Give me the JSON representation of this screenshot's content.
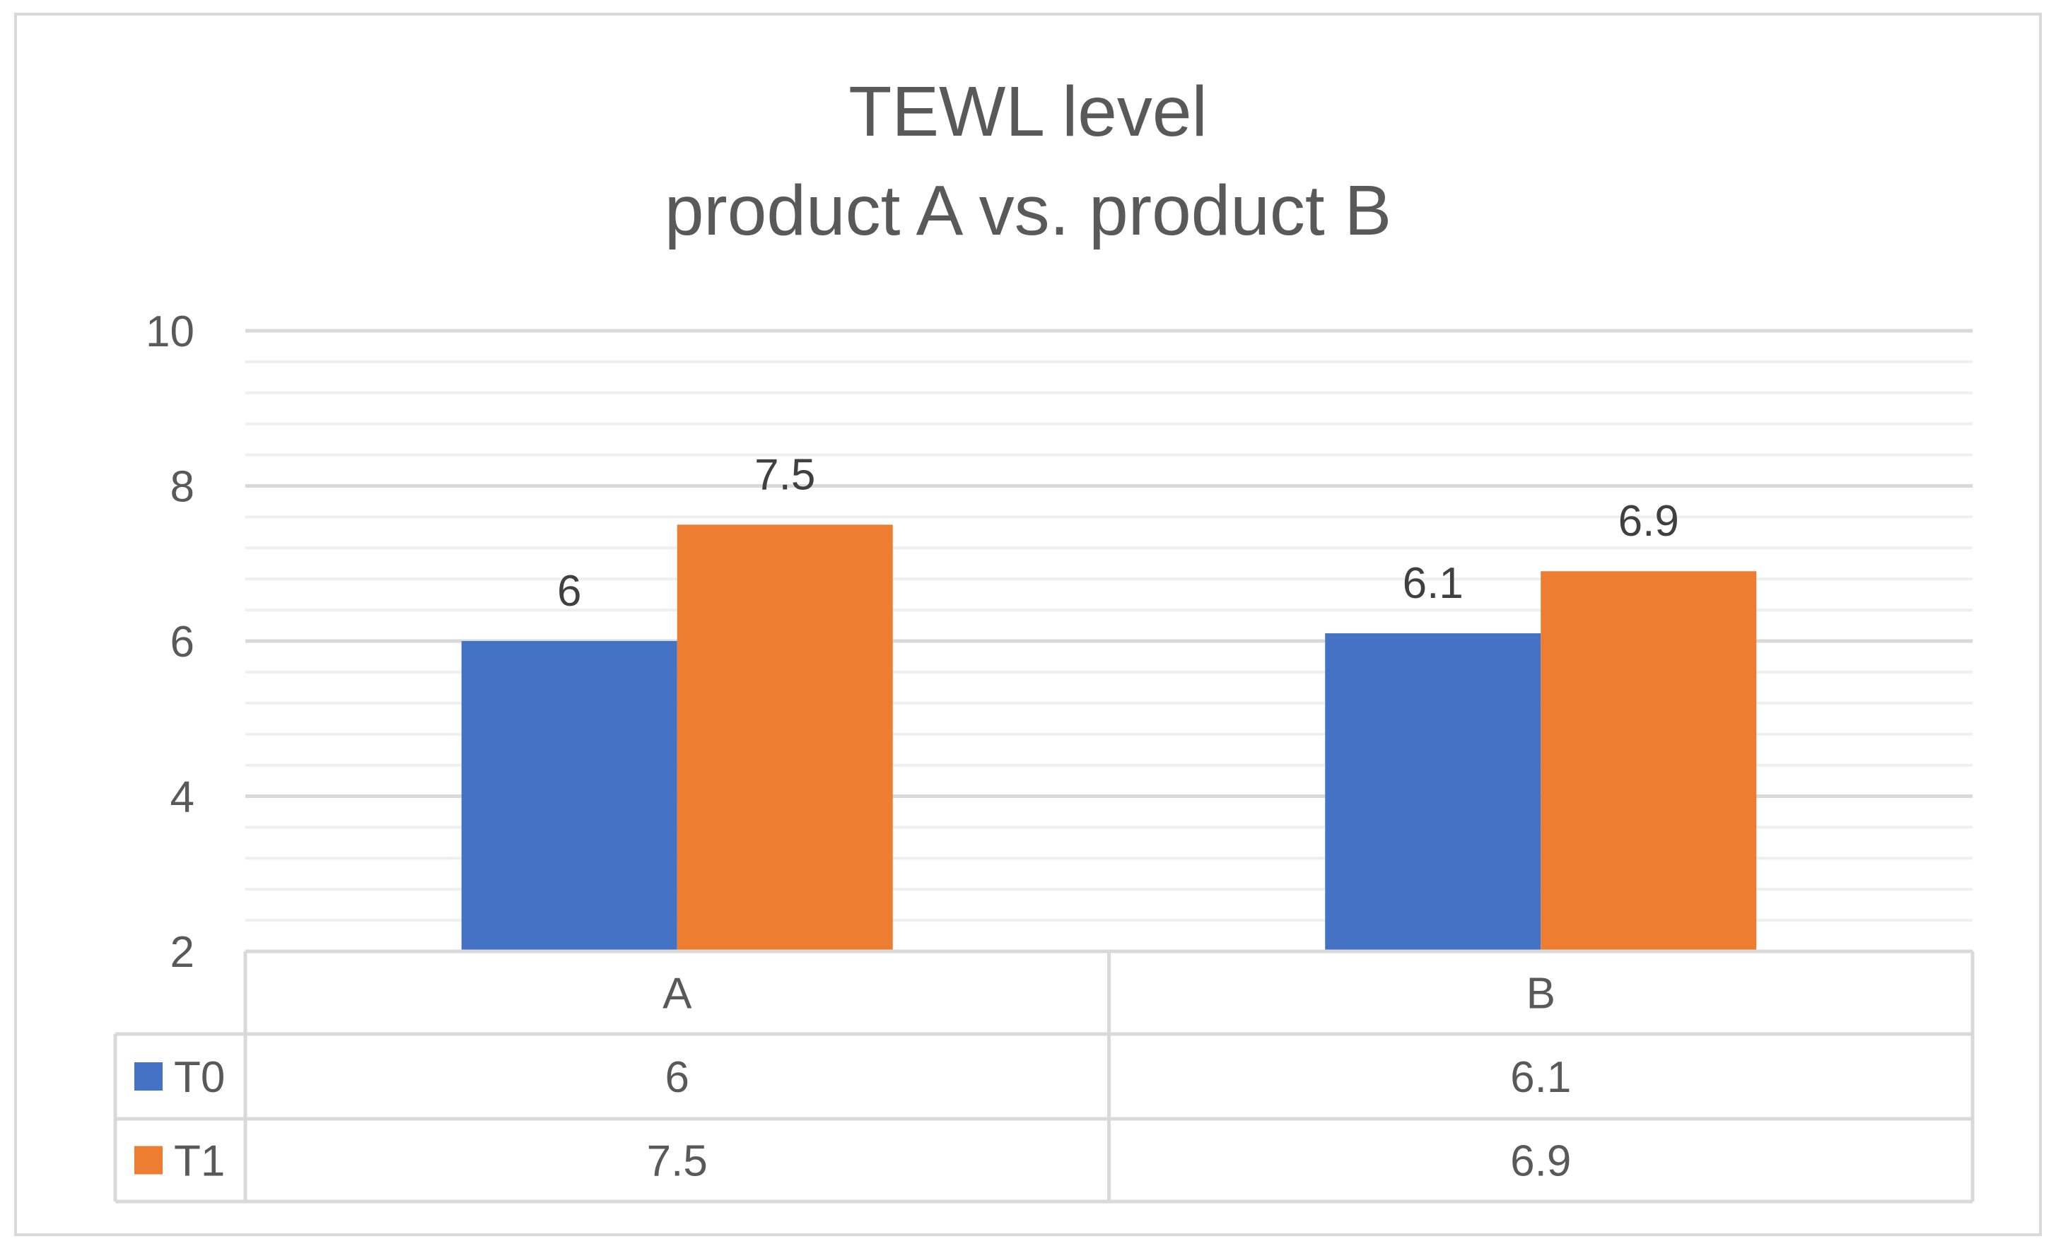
{
  "chart_data": {
    "type": "bar",
    "title": "TEWL level",
    "subtitle": "product A vs. product B",
    "xlabel": "",
    "ylabel": "",
    "categories": [
      "A",
      "B"
    ],
    "series": [
      {
        "name": "T0",
        "values": [
          6,
          6.1
        ],
        "color": "#4472c4"
      },
      {
        "name": "T1",
        "values": [
          7.5,
          6.9
        ],
        "color": "#ed7d31"
      }
    ],
    "ylim": [
      2,
      10
    ],
    "yticks": [
      2,
      4,
      6,
      8,
      10
    ],
    "data_labels": [
      [
        "6",
        "6.1"
      ],
      [
        "7.5",
        "6.9"
      ]
    ],
    "grid": true,
    "minor_grid": true,
    "legend": "data-table",
    "data_table": {
      "header": [
        "A",
        "B"
      ],
      "rows": [
        {
          "series": "T0",
          "cells": [
            "6",
            "6.1"
          ]
        },
        {
          "series": "T1",
          "cells": [
            "7.5",
            "6.9"
          ]
        }
      ]
    }
  }
}
